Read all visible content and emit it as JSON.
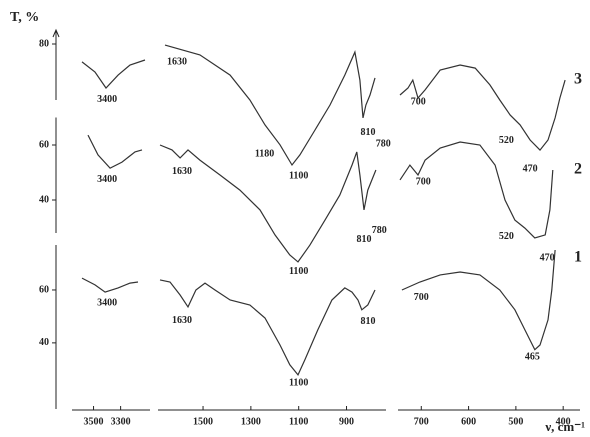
{
  "chart_data": {
    "type": "line",
    "y_label": "T, %",
    "x_label": "ν, cm⁻¹",
    "x_panels": [
      {
        "xlim": [
          3600,
          3120
        ],
        "xticks": [
          3500,
          3300
        ]
      },
      {
        "xlim": [
          1680,
          760
        ],
        "xticks": [
          1500,
          1300,
          1100,
          900
        ]
      },
      {
        "xlim": [
          745,
          375
        ],
        "xticks": [
          700,
          600,
          500,
          400
        ]
      }
    ],
    "series": [
      {
        "name": "1",
        "color": "#333333",
        "ylim": [
          15,
          77
        ],
        "yticks": [
          40,
          60
        ],
        "peaks": [
          3400,
          1630,
          1100,
          810,
          700,
          465
        ],
        "segments": [
          {
            "x": [
              3585,
              3489,
              3415,
              3319,
              3231,
              3172
            ],
            "values": [
              64.5,
              61.9,
              59.2,
              60.8,
              62.6,
              63
            ]
          },
          {
            "x": [
              1680,
              1638,
              1596,
              1563,
              1530,
              1492,
              1450,
              1387,
              1304,
              1241,
              1178,
              1137,
              1103,
              1074,
              1020,
              961,
              907,
              877,
              852,
              836,
              811,
              781
            ],
            "values": [
              63.8,
              63,
              58.1,
              53.6,
              60,
              62.6,
              60,
              56.2,
              54.3,
              49.4,
              39.2,
              31.7,
              27.9,
              33.6,
              44.9,
              56.2,
              60.8,
              59.2,
              56.2,
              52.5,
              54.3,
              60
            ]
          },
          {
            "x": [
              741,
              703,
              660,
              618,
              576,
              534,
              502,
              481,
              460,
              449,
              432,
              424,
              417
            ],
            "values": [
              60,
              63,
              65.7,
              66.8,
              65.7,
              60,
              52.5,
              44.9,
              37.4,
              39.2,
              48.7,
              60,
              75.1
            ]
          }
        ]
      },
      {
        "name": "2",
        "color": "#333333",
        "ylim": [
          28,
          70
        ],
        "yticks": [
          40,
          60
        ],
        "peaks": [
          3400,
          1630,
          1100,
          810,
          780,
          700,
          520,
          470
        ],
        "segments": [
          {
            "x": [
              3541,
              3467,
              3378,
              3290,
              3194,
              3142
            ],
            "values": [
              63.6,
              56.4,
              51.6,
              53.8,
              57.5,
              58.2
            ]
          },
          {
            "x": [
              1680,
              1630,
              1596,
              1563,
              1513,
              1429,
              1346,
              1262,
              1199,
              1137,
              1103,
              1053,
              990,
              928,
              877,
              857,
              844,
              827,
              811,
              794,
              777
            ],
            "values": [
              60,
              58.2,
              55.3,
              58.2,
              54.5,
              49.1,
              43.6,
              36.4,
              27.3,
              20,
              17.5,
              23.6,
              32.7,
              41.8,
              52.7,
              57.5,
              49.1,
              36.4,
              43.6,
              47.3,
              50.9
            ]
          },
          {
            "x": [
              745,
              724,
              707,
              692,
              660,
              618,
              576,
              544,
              523,
              502,
              481,
              460,
              438,
              428,
              422
            ],
            "values": [
              47.3,
              52.7,
              49.1,
              54.5,
              58.9,
              61.1,
              60,
              52.7,
              40,
              32.7,
              29.8,
              26.2,
              27.3,
              36.4,
              50.9
            ]
          }
        ]
      },
      {
        "name": "3",
        "color": "#333333",
        "ylim": [
          60,
          85
        ],
        "yticks": [
          80
        ],
        "peaks": [
          3400,
          1630,
          1180,
          1100,
          810,
          780,
          700,
          520,
          470
        ],
        "segments": [
          {
            "x": [
              3585,
              3489,
              3408,
              3319,
              3231,
              3120
            ],
            "values": [
              73.6,
              70,
              64.3,
              68.9,
              72.5,
              74.3
            ]
          },
          {
            "x": [
              1659,
              1513,
              1387,
              1304,
              1241,
              1178,
              1128,
              1095,
              1032,
              969,
              907,
              865,
              844,
              831,
              819,
              802,
              781
            ],
            "values": [
              79.6,
              76.1,
              68.9,
              60,
              51.1,
              44,
              36.8,
              40.4,
              49.3,
              58.2,
              68.9,
              77.1,
              67.1,
              53.6,
              58.2,
              61.8,
              67.9
            ]
          },
          {
            "x": [
              745,
              728,
              718,
              707,
              692,
              660,
              618,
              586,
              555,
              534,
              512,
              491,
              470,
              449,
              432,
              417,
              407,
              396
            ],
            "values": [
              61.8,
              64.3,
              67.1,
              60.7,
              63.6,
              70.7,
              72.5,
              71.4,
              65.4,
              60,
              54.6,
              51.1,
              45.7,
              42.1,
              45.7,
              53.6,
              60.7,
              67.1
            ]
          }
        ]
      }
    ]
  }
}
